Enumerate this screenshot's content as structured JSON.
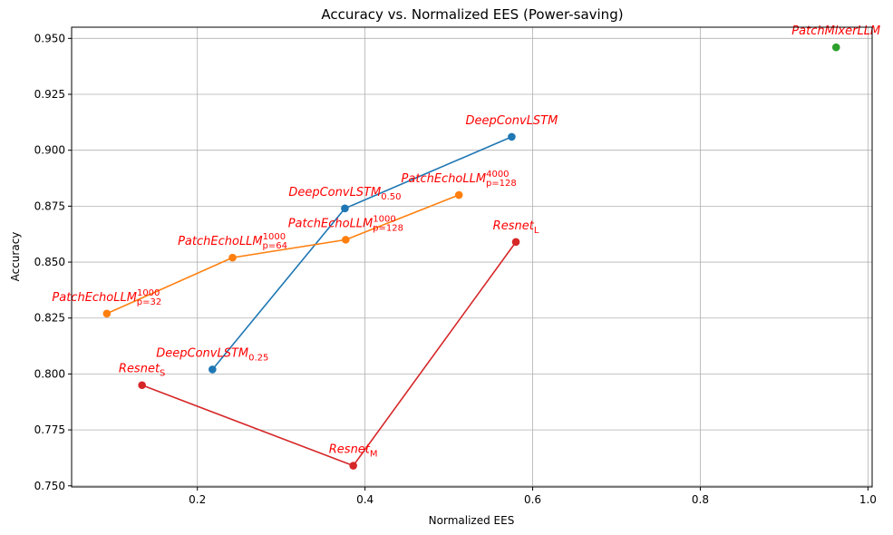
{
  "chart_data": {
    "type": "line",
    "title": "Accuracy vs. Normalized EES (Power-saving)",
    "xlabel": "Normalized EES",
    "ylabel": "Accuracy",
    "xlim": [
      0.05,
      1.005
    ],
    "ylim": [
      0.7495,
      0.955
    ],
    "xticks": [
      "0.2",
      "0.4",
      "0.6",
      "0.8",
      "1.0"
    ],
    "xtick_values": [
      0.2,
      0.4,
      0.6,
      0.8,
      1.0
    ],
    "yticks": [
      "0.750",
      "0.775",
      "0.800",
      "0.825",
      "0.850",
      "0.875",
      "0.900",
      "0.925",
      "0.950"
    ],
    "ytick_values": [
      0.75,
      0.775,
      0.8,
      0.825,
      0.85,
      0.875,
      0.9,
      0.925,
      0.95
    ],
    "grid": true,
    "series": [
      {
        "color": "#1f77b4",
        "points": [
          {
            "x": 0.218,
            "y": 0.802,
            "label": "DeepConvLSTM",
            "sub": "0.25",
            "sup": ""
          },
          {
            "x": 0.376,
            "y": 0.874,
            "label": "DeepConvLSTM",
            "sub": "0.50",
            "sup": ""
          },
          {
            "x": 0.575,
            "y": 0.906,
            "label": "DeepConvLSTM",
            "sub": "",
            "sup": ""
          }
        ]
      },
      {
        "color": "#ff7f0e",
        "points": [
          {
            "x": 0.092,
            "y": 0.827,
            "label": "PatchEchoLLM",
            "sub": "p=32",
            "sup": "1000"
          },
          {
            "x": 0.242,
            "y": 0.852,
            "label": "PatchEchoLLM",
            "sub": "p=64",
            "sup": "1000"
          },
          {
            "x": 0.377,
            "y": 0.86,
            "label": "PatchEchoLLM",
            "sub": "p=128",
            "sup": "1000"
          },
          {
            "x": 0.512,
            "y": 0.88,
            "label": "PatchEchoLLM",
            "sub": "p=128",
            "sup": "4000"
          }
        ]
      },
      {
        "color": "#2ca02c",
        "points": [
          {
            "x": 0.962,
            "y": 0.946,
            "label": "PatchMixerLLM",
            "sub": "",
            "sup": ""
          }
        ]
      },
      {
        "color": "#d62728",
        "points": [
          {
            "x": 0.134,
            "y": 0.795,
            "label": "Resnet",
            "sub": "S",
            "sup": ""
          },
          {
            "x": 0.386,
            "y": 0.759,
            "label": "Resnet",
            "sub": "M",
            "sup": ""
          },
          {
            "x": 0.58,
            "y": 0.859,
            "label": "Resnet",
            "sub": "L",
            "sup": ""
          }
        ]
      }
    ]
  }
}
